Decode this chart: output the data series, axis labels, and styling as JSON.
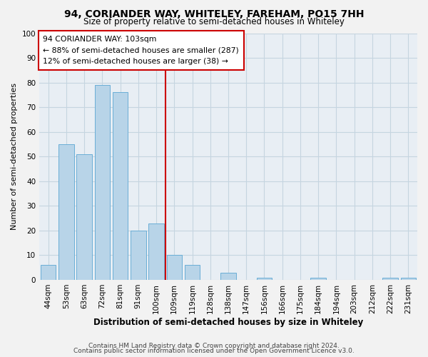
{
  "title": "94, CORIANDER WAY, WHITELEY, FAREHAM, PO15 7HH",
  "subtitle": "Size of property relative to semi-detached houses in Whiteley",
  "xlabel": "Distribution of semi-detached houses by size in Whiteley",
  "ylabel": "Number of semi-detached properties",
  "categories": [
    "44sqm",
    "53sqm",
    "63sqm",
    "72sqm",
    "81sqm",
    "91sqm",
    "100sqm",
    "109sqm",
    "119sqm",
    "128sqm",
    "138sqm",
    "147sqm",
    "156sqm",
    "166sqm",
    "175sqm",
    "184sqm",
    "194sqm",
    "203sqm",
    "212sqm",
    "222sqm",
    "231sqm"
  ],
  "values": [
    6,
    55,
    51,
    79,
    76,
    20,
    23,
    10,
    6,
    0,
    3,
    0,
    1,
    0,
    0,
    1,
    0,
    0,
    0,
    1,
    1
  ],
  "bar_color": "#b8d4e8",
  "bar_edge_color": "#6aaed6",
  "vline_x_index": 6,
  "vline_color": "#cc0000",
  "annotation_line1": "94 CORIANDER WAY: 103sqm",
  "annotation_line2": "← 88% of semi-detached houses are smaller (287)",
  "annotation_line3": "12% of semi-detached houses are larger (38) →",
  "annotation_box_color": "white",
  "annotation_box_edge_color": "#cc0000",
  "ylim": [
    0,
    100
  ],
  "yticks": [
    0,
    10,
    20,
    30,
    40,
    50,
    60,
    70,
    80,
    90,
    100
  ],
  "footer_line1": "Contains HM Land Registry data © Crown copyright and database right 2024.",
  "footer_line2": "Contains public sector information licensed under the Open Government Licence v3.0.",
  "background_color": "#f2f2f2",
  "plot_bg_color": "#e8eef4",
  "grid_color": "#c5d5e0",
  "title_fontsize": 10,
  "subtitle_fontsize": 8.5,
  "xlabel_fontsize": 8.5,
  "ylabel_fontsize": 8,
  "tick_fontsize": 7.5,
  "footer_fontsize": 6.5
}
